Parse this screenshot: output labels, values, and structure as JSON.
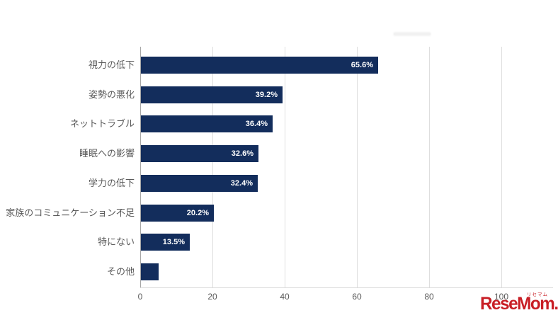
{
  "chart_data": {
    "type": "bar",
    "orientation": "horizontal",
    "title": "",
    "xlabel": "",
    "ylabel": "",
    "categories": [
      "視力の低下",
      "姿勢の悪化",
      "ネットトラブル",
      "睡眠への影響",
      "学力の低下",
      "家族のコミュニケーション不足",
      "特にない",
      "その他"
    ],
    "values": [
      65.6,
      39.2,
      36.4,
      32.6,
      32.4,
      20.2,
      13.5,
      4.9
    ],
    "data_labels": [
      "65.6%",
      "39.2%",
      "36.4%",
      "32.6%",
      "32.4%",
      "20.2%",
      "13.5%",
      ""
    ],
    "xlim": [
      0,
      100
    ],
    "x_ticks": [
      "0",
      "20",
      "40",
      "60",
      "80",
      "100"
    ],
    "grid": "vertical-only",
    "legend": "empty-placeholder",
    "bar_color": "#132d5c",
    "value_label_color": "#ffffff",
    "axis_label_color": "#595959",
    "gridline_color": "#dedede"
  },
  "watermark": {
    "text": "ReseMom.",
    "furigana": "リセマム",
    "color": "#c81e25"
  }
}
